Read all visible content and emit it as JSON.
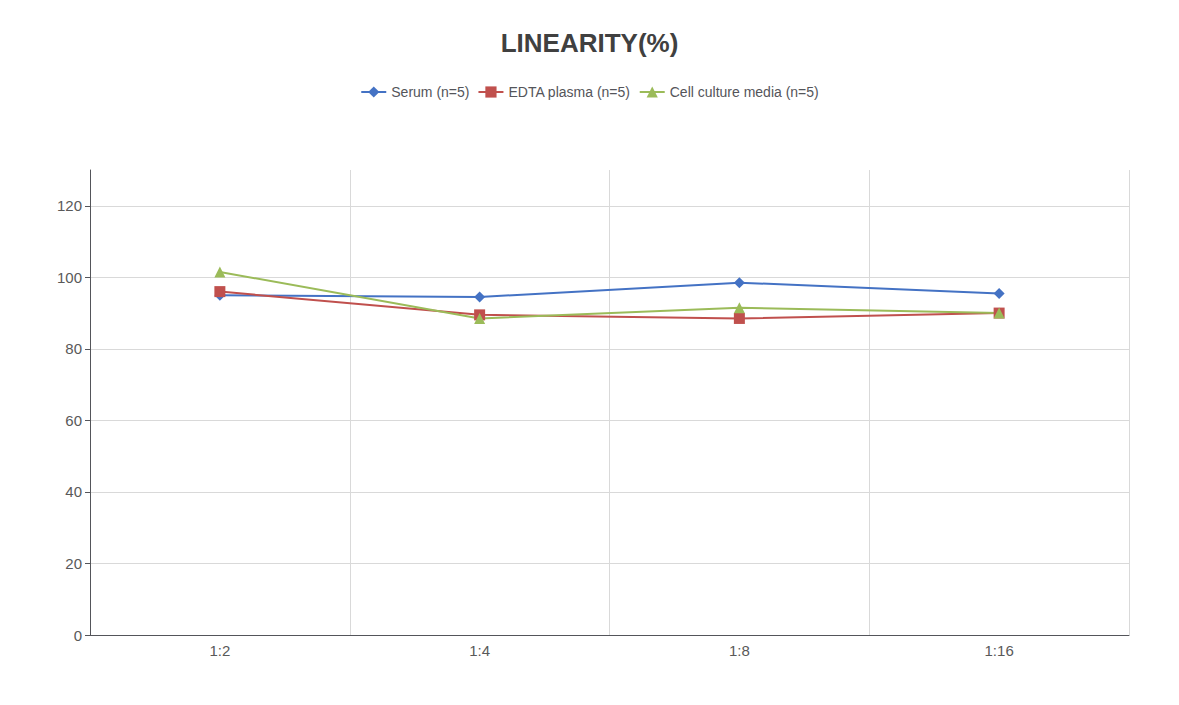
{
  "chart_data": {
    "type": "line",
    "title": "LINEARITY(%)",
    "categories": [
      "1:2",
      "1:4",
      "1:8",
      "1:16"
    ],
    "series": [
      {
        "name": "Serum (n=5)",
        "color": "#4472C4",
        "marker": "diamond",
        "values": [
          95,
          94.5,
          98.5,
          95.5
        ]
      },
      {
        "name": "EDTA plasma (n=5)",
        "color": "#C0504D",
        "marker": "square",
        "values": [
          96,
          89.5,
          88.5,
          90
        ]
      },
      {
        "name": "Cell culture media (n=5)",
        "color": "#9BBB59",
        "marker": "triangle",
        "values": [
          101.5,
          88.5,
          91.5,
          90
        ]
      }
    ],
    "ylim": [
      0,
      130
    ],
    "yticks": [
      0,
      20,
      40,
      60,
      80,
      100,
      120
    ],
    "grid": true,
    "legend": "top"
  }
}
